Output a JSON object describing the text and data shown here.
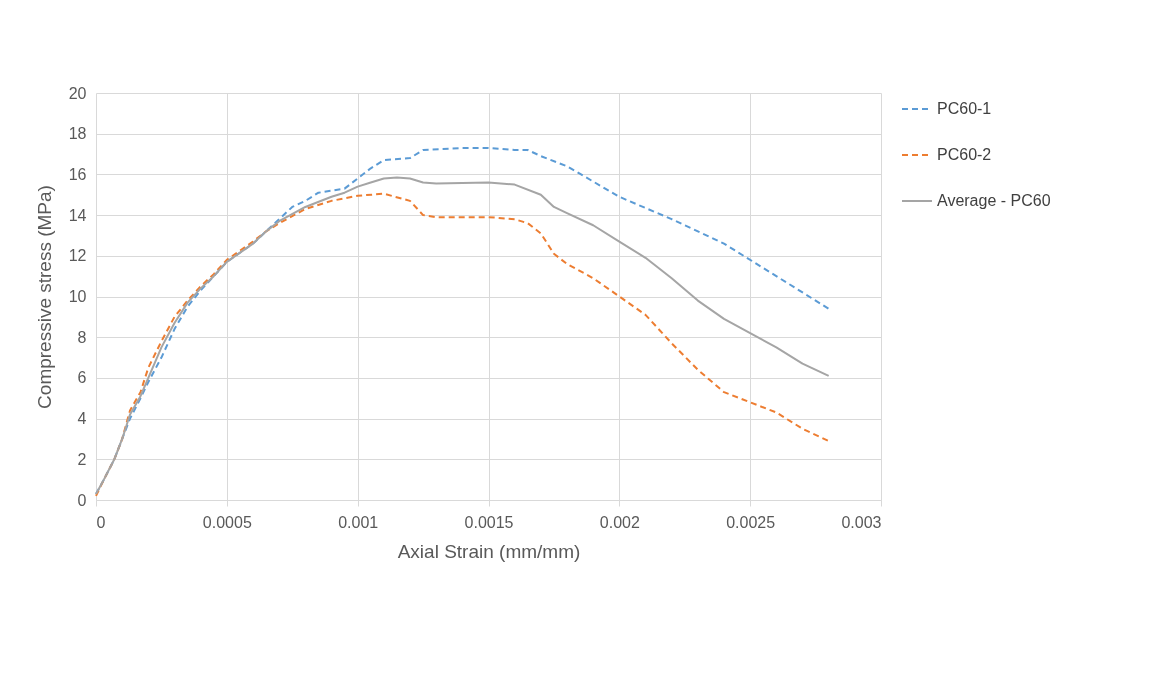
{
  "chart_data": {
    "type": "line",
    "xlabel": "Axial Strain (mm/mm)",
    "ylabel": "Compressive stress (MPa)",
    "xlim": [
      0,
      0.003
    ],
    "xticks": [
      0,
      0.0005,
      0.001,
      0.0015,
      0.002,
      0.0025,
      0.003
    ],
    "ylim": [
      0,
      20
    ],
    "yticks": [
      0,
      2,
      4,
      6,
      8,
      10,
      12,
      14,
      16,
      18,
      20
    ],
    "grid": true,
    "legend": "right",
    "series": [
      {
        "name": "PC60-1",
        "color": "#5b9bd5",
        "line_style": "dashed",
        "x": [
          0,
          3e-05,
          7e-05,
          0.0001,
          0.00013,
          0.00017,
          0.0002,
          0.00025,
          0.0003,
          0.00035,
          0.0004,
          0.00045,
          0.0005,
          0.0006,
          0.00065,
          0.0007,
          0.00075,
          0.0008,
          0.00085,
          0.0009,
          0.00095,
          0.001,
          0.00105,
          0.0011,
          0.0012,
          0.00125,
          0.0014,
          0.0015,
          0.0016,
          0.00165,
          0.0017,
          0.0018,
          0.002,
          0.0022,
          0.0024,
          0.0026,
          0.0028
        ],
        "values": [
          0.3,
          1,
          2,
          3,
          4,
          5,
          5.8,
          7,
          8.4,
          9.5,
          10.3,
          11,
          11.7,
          12.6,
          13.2,
          13.8,
          14.4,
          14.7,
          15.1,
          15.2,
          15.3,
          15.8,
          16.3,
          16.7,
          16.8,
          17.2,
          17.3,
          17.3,
          17.2,
          17.2,
          16.9,
          16.4,
          14.9,
          13.8,
          12.6,
          11.0,
          9.4
        ]
      },
      {
        "name": "PC60-2",
        "color": "#ed7d31",
        "line_style": "dashed",
        "x": [
          0,
          3e-05,
          7e-05,
          0.0001,
          0.00013,
          0.00017,
          0.0002,
          0.00025,
          0.0003,
          0.00035,
          0.0004,
          0.00045,
          0.0005,
          0.0006,
          0.00065,
          0.0007,
          0.0008,
          0.0009,
          0.001,
          0.0011,
          0.0012,
          0.00125,
          0.0013,
          0.0015,
          0.0016,
          0.00165,
          0.0017,
          0.00175,
          0.0018,
          0.0019,
          0.002,
          0.0021,
          0.0022,
          0.0023,
          0.0024,
          0.0025,
          0.0026,
          0.0027,
          0.0028
        ],
        "values": [
          0.2,
          1,
          2,
          3,
          4.4,
          5.3,
          6.5,
          7.8,
          9,
          9.8,
          10.5,
          11.1,
          11.8,
          12.7,
          13.2,
          13.6,
          14.3,
          14.7,
          14.95,
          15.05,
          14.7,
          14.0,
          13.9,
          13.9,
          13.8,
          13.6,
          13.1,
          12.1,
          11.6,
          10.9,
          10.0,
          9.1,
          7.7,
          6.4,
          5.3,
          4.8,
          4.3,
          3.5,
          2.9
        ]
      },
      {
        "name": "Average - PC60",
        "color": "#a5a5a5",
        "line_style": "solid",
        "x": [
          0,
          3e-05,
          7e-05,
          0.0001,
          0.00013,
          0.00017,
          0.0002,
          0.00025,
          0.0003,
          0.00035,
          0.0004,
          0.00045,
          0.0005,
          0.0006,
          0.00065,
          0.0007,
          0.0008,
          0.0009,
          0.00095,
          0.001,
          0.00105,
          0.0011,
          0.00115,
          0.0012,
          0.00125,
          0.0013,
          0.0015,
          0.0016,
          0.0017,
          0.00175,
          0.0018,
          0.0019,
          0.002,
          0.0021,
          0.0022,
          0.0023,
          0.0024,
          0.0025,
          0.0026,
          0.0027,
          0.0028
        ],
        "values": [
          0.3,
          1,
          2,
          3,
          4.2,
          5.1,
          6,
          7.5,
          8.7,
          9.7,
          10.4,
          11,
          11.7,
          12.6,
          13.2,
          13.7,
          14.4,
          14.9,
          15.1,
          15.4,
          15.6,
          15.8,
          15.85,
          15.8,
          15.6,
          15.55,
          15.6,
          15.5,
          15.0,
          14.4,
          14.1,
          13.5,
          12.7,
          11.9,
          10.9,
          9.8,
          8.9,
          8.2,
          7.5,
          6.7,
          6.1
        ]
      }
    ]
  }
}
